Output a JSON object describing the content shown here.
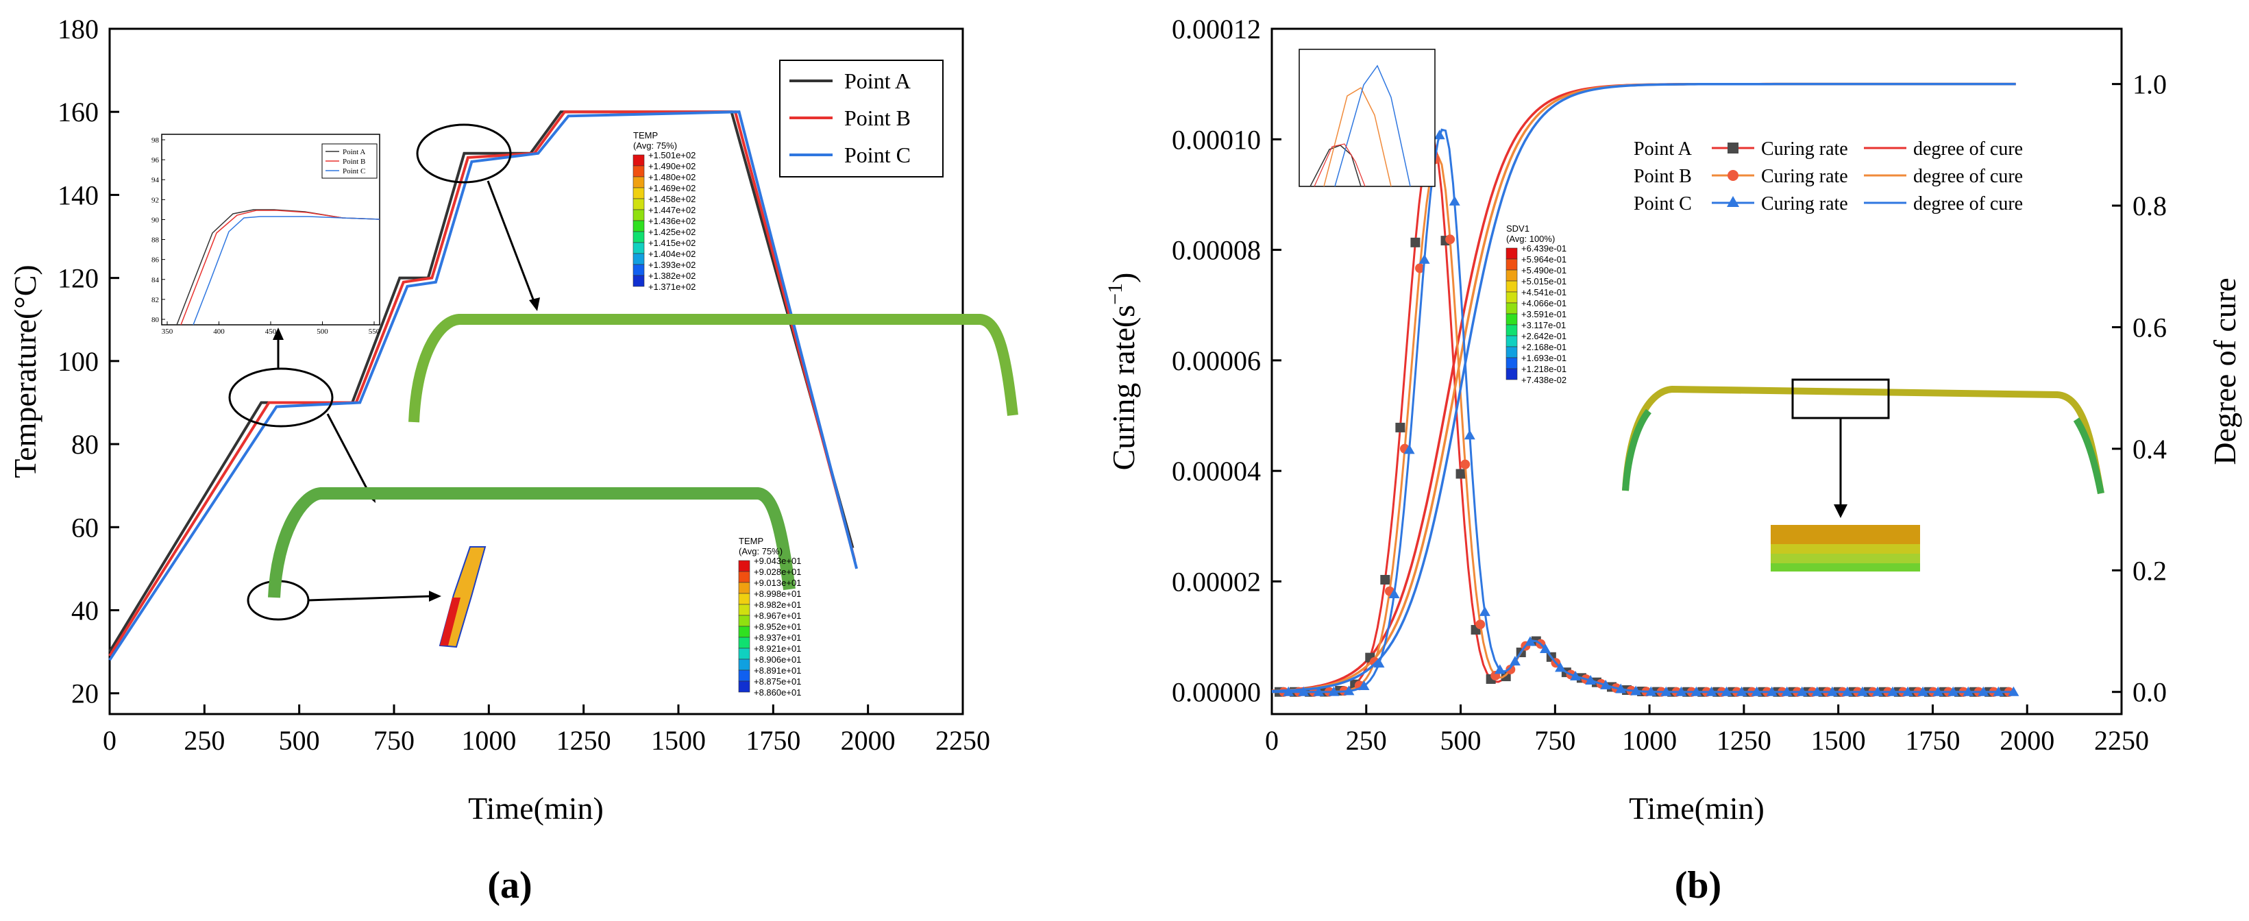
{
  "chart_data": [
    {
      "panel": "a",
      "panel_label": "(a)",
      "type": "line",
      "xlabel": "Time(min)",
      "ylabel": "Temperature(°C)",
      "xlim": [
        0,
        2250
      ],
      "ylim": [
        15,
        180
      ],
      "xticks": [
        0,
        250,
        500,
        750,
        1000,
        1250,
        1500,
        1750,
        2000,
        2250
      ],
      "yticks": [
        20,
        40,
        60,
        80,
        100,
        120,
        140,
        160,
        180
      ],
      "legend": [
        "Point A",
        "Point B",
        "Point C"
      ],
      "series": [
        {
          "name": "Point A",
          "color": "#333333",
          "points": [
            [
              0,
              30
            ],
            [
              400,
              90
            ],
            [
              640,
              90
            ],
            [
              765,
              120
            ],
            [
              840,
              120
            ],
            [
              935,
              150
            ],
            [
              1110,
              150
            ],
            [
              1190,
              160
            ],
            [
              1640,
              160
            ],
            [
              1960,
              55
            ]
          ]
        },
        {
          "name": "Point B",
          "color": "#e8322f",
          "points": [
            [
              0,
              29
            ],
            [
              420,
              90
            ],
            [
              650,
              90
            ],
            [
              775,
              119
            ],
            [
              850,
              120
            ],
            [
              945,
              149
            ],
            [
              1120,
              150
            ],
            [
              1200,
              160
            ],
            [
              1650,
              160
            ],
            [
              1965,
              52
            ]
          ]
        },
        {
          "name": "Point C",
          "color": "#2f77e0",
          "points": [
            [
              0,
              28
            ],
            [
              440,
              89
            ],
            [
              660,
              90
            ],
            [
              785,
              118
            ],
            [
              860,
              119
            ],
            [
              955,
              148
            ],
            [
              1130,
              150
            ],
            [
              1210,
              159
            ],
            [
              1660,
              160
            ],
            [
              1970,
              50
            ]
          ]
        }
      ],
      "inset": {
        "xticks": [
          "350",
          "400",
          "450",
          "500",
          "550"
        ],
        "yticks": [
          "80",
          "82",
          "84",
          "86",
          "88",
          "90",
          "92",
          "94",
          "96",
          "98"
        ],
        "legend": [
          "Point A",
          "Point B",
          "Point C"
        ]
      },
      "contours": [
        {
          "title": "TEMP",
          "subtitle": "(Avg: 75%)",
          "values": [
            "+1.501e+02",
            "+1.490e+02",
            "+1.480e+02",
            "+1.469e+02",
            "+1.458e+02",
            "+1.447e+02",
            "+1.436e+02",
            "+1.425e+02",
            "+1.415e+02",
            "+1.404e+02",
            "+1.393e+02",
            "+1.382e+02",
            "+1.371e+02"
          ]
        },
        {
          "title": "TEMP",
          "subtitle": "(Avg: 75%)",
          "values": [
            "+9.043e+01",
            "+9.028e+01",
            "+9.013e+01",
            "+8.998e+01",
            "+8.982e+01",
            "+8.967e+01",
            "+8.952e+01",
            "+8.937e+01",
            "+8.921e+01",
            "+8.906e+01",
            "+8.891e+01",
            "+8.875e+01",
            "+8.860e+01"
          ]
        }
      ]
    },
    {
      "panel": "b",
      "panel_label": "(b)",
      "type": "line",
      "xlabel": "Time(min)",
      "ylabel_left": "Curing rate(s",
      "ylabel_left_sup": "−1",
      "ylabel_left_close": ")",
      "ylabel_right": "Degree of cure",
      "xlim": [
        0,
        2250
      ],
      "ylim_left": [
        -4e-06,
        0.00012
      ],
      "ylim_right": [
        -0.0364,
        1.0909
      ],
      "xticks": [
        0,
        250,
        500,
        750,
        1000,
        1250,
        1500,
        1750,
        2000,
        2250
      ],
      "yticks_left": [
        "0.00000",
        "0.00002",
        "0.00004",
        "0.00006",
        "0.00008",
        "0.00010",
        "0.00012"
      ],
      "yticks_left_values": [
        0,
        2e-05,
        4e-05,
        6e-05,
        8e-05,
        0.0001,
        0.00012
      ],
      "yticks_right": [
        "0.0",
        "0.2",
        "0.4",
        "0.6",
        "0.8",
        "1.0"
      ],
      "yticks_right_values": [
        0,
        0.2,
        0.4,
        0.6,
        0.8,
        1.0
      ],
      "legend": [
        {
          "point": "Point A",
          "rate": "Curing rate",
          "cure": "degree of cure"
        },
        {
          "point": "Point B",
          "rate": "Curing rate",
          "cure": "degree of cure"
        },
        {
          "point": "Point C",
          "rate": "Curing rate",
          "cure": "degree of cure"
        }
      ],
      "series": [
        {
          "name": "Point A",
          "color": "#e8322f",
          "marker": "square",
          "marker_color": "#4a4a4a",
          "peak_time": 425,
          "peak_rate": 0.0001,
          "cure_shift": 0
        },
        {
          "name": "Point B",
          "color": "#f08a3a",
          "marker": "circle",
          "marker_color": "#ef5a3c",
          "peak_time": 440,
          "peak_rate": 9.7e-05,
          "cure_shift": 15
        },
        {
          "name": "Point C",
          "color": "#2f77e0",
          "marker": "triangle",
          "marker_color": "#2f77e0",
          "peak_time": 455,
          "peak_rate": 0.000102,
          "cure_shift": 30
        }
      ],
      "contour": {
        "title": "SDV1",
        "subtitle": "(Avg: 100%)",
        "values": [
          "+6.439e-01",
          "+5.964e-01",
          "+5.490e-01",
          "+5.015e-01",
          "+4.541e-01",
          "+4.066e-01",
          "+3.591e-01",
          "+3.117e-01",
          "+2.642e-01",
          "+2.168e-01",
          "+1.693e-01",
          "+1.218e-01",
          "+7.438e-02"
        ]
      }
    }
  ],
  "colors": {
    "contour_scale": [
      "#e01010",
      "#f05010",
      "#f0a010",
      "#f0d010",
      "#d0e010",
      "#90e010",
      "#30e020",
      "#10e070",
      "#10d0c0",
      "#10a0e0",
      "#1060f0",
      "#1030d0",
      "#0a10a0"
    ],
    "contour_title": "#3a3aa0"
  }
}
